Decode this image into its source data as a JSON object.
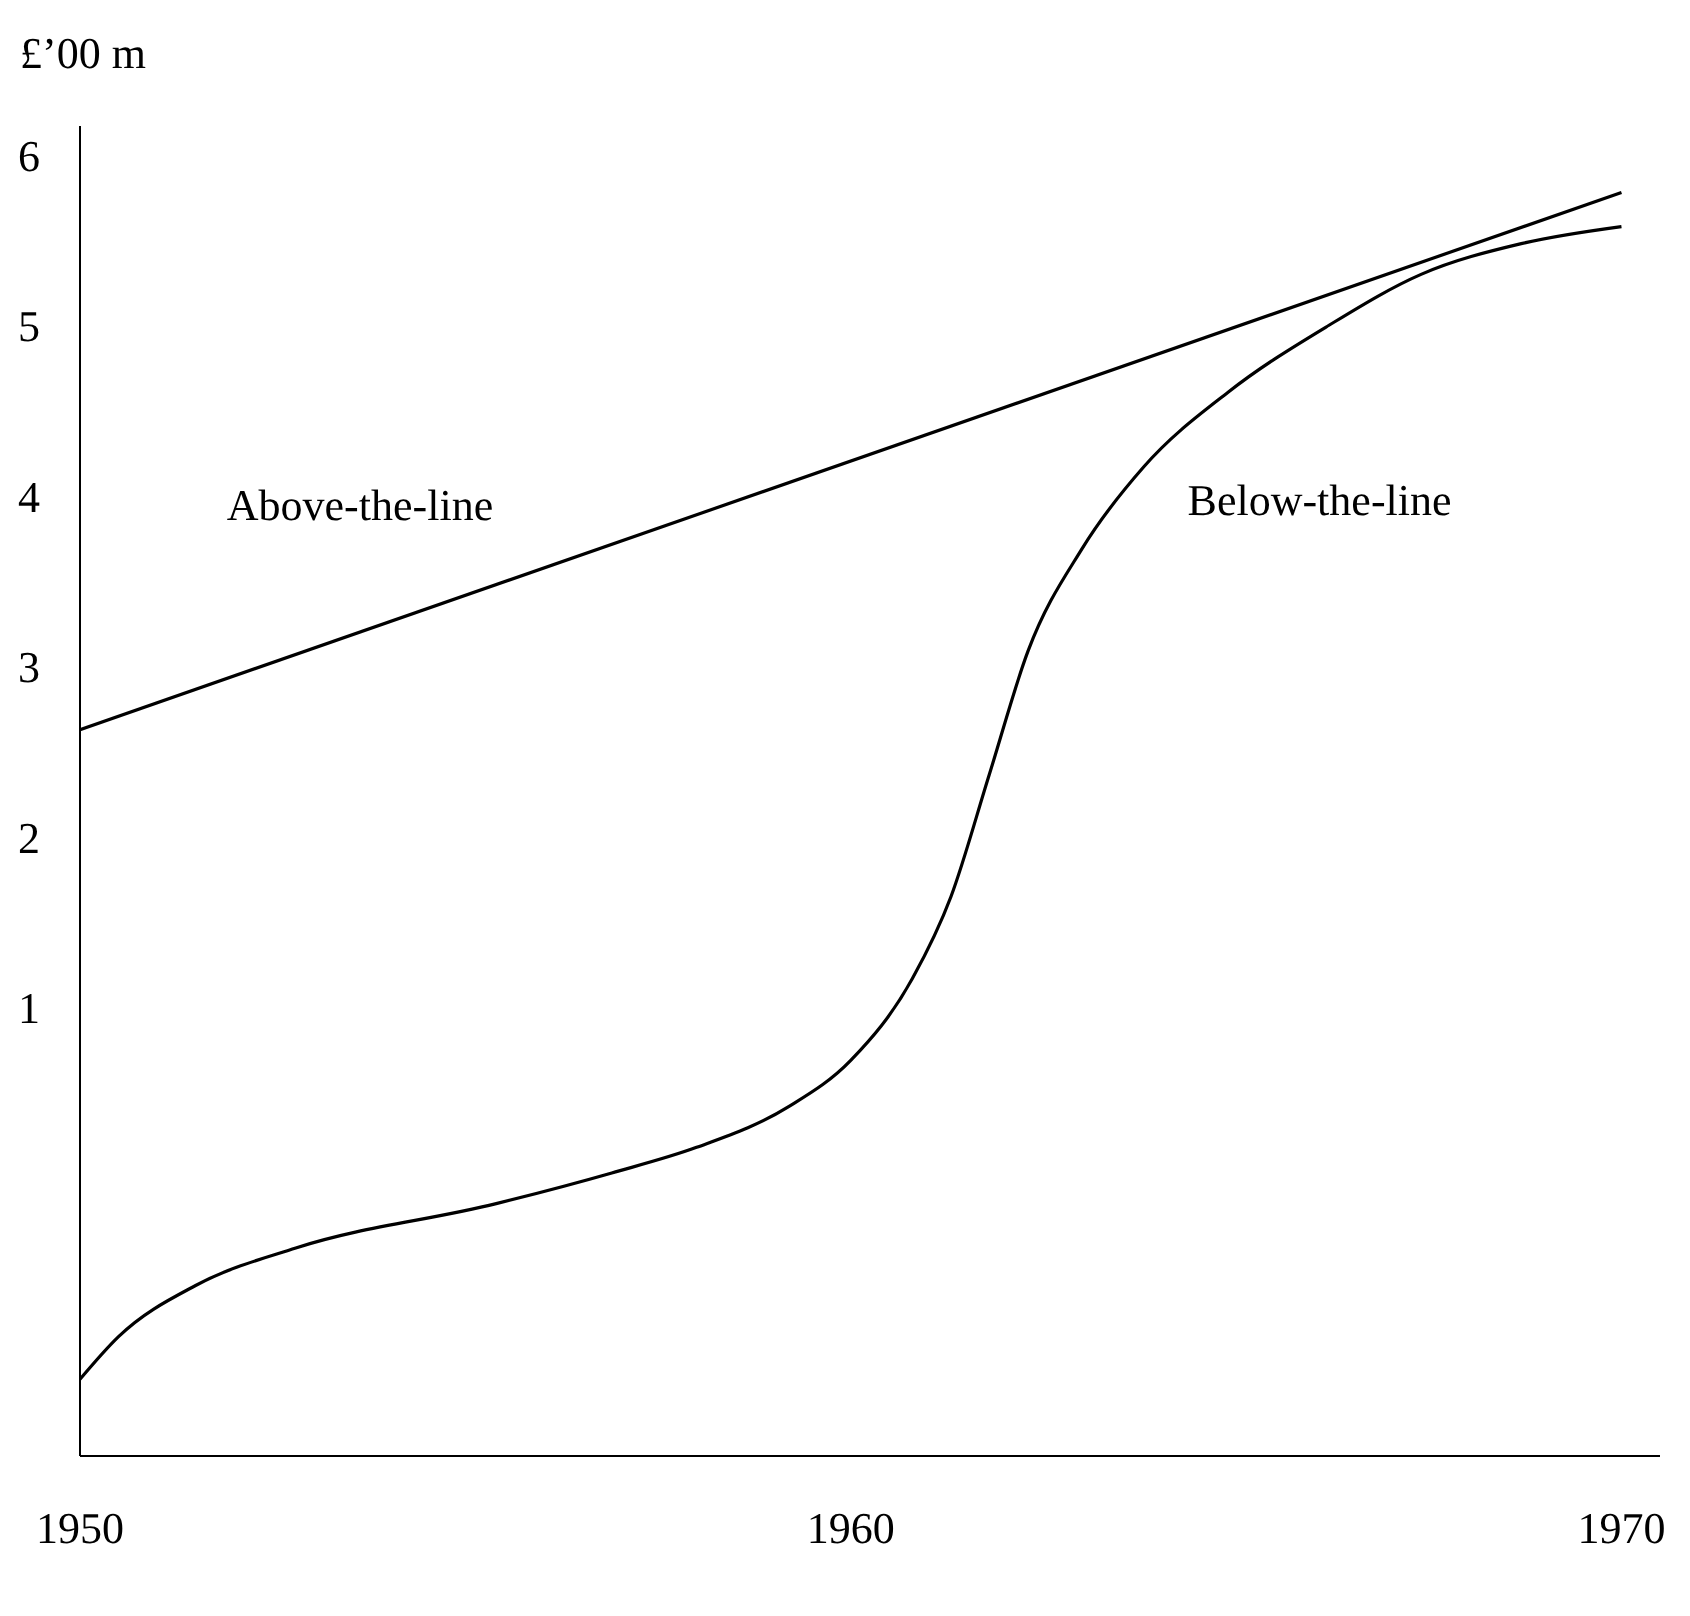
{
  "chart_data": {
    "type": "line",
    "ylabel": "£’00 m",
    "xlim": [
      1950,
      1970.5
    ],
    "xticks": [
      1950,
      1960,
      1970
    ],
    "ylim": [
      -1.63,
      6.17
    ],
    "yticks": [
      1,
      2,
      3,
      4,
      5,
      6
    ],
    "grid": false,
    "legend": false,
    "marker": "none",
    "line_style": "solid",
    "series": [
      {
        "name": "Above-the-line",
        "color": "#000000",
        "x": [
          1950,
          1970
        ],
        "values": [
          2.63,
          5.78
        ]
      },
      {
        "name": "Below-the-line",
        "color": "#000000",
        "x": [
          1950,
          1950.5,
          1951.5,
          1952.8,
          1955.4,
          1956.9,
          1958,
          1959.2,
          1960,
          1960.8,
          1961.3,
          1961.8,
          1962.3,
          1963,
          1963.8,
          1964.9,
          1966.2,
          1967.4,
          1968.7,
          1970
        ],
        "values": [
          -1.18,
          -0.93,
          -0.63,
          -0.41,
          -0.15,
          0.03,
          0.18,
          0.42,
          0.69,
          1.17,
          1.65,
          2.37,
          3.09,
          3.69,
          4.17,
          4.61,
          5.0,
          5.3,
          5.48,
          5.58
        ]
      }
    ]
  }
}
